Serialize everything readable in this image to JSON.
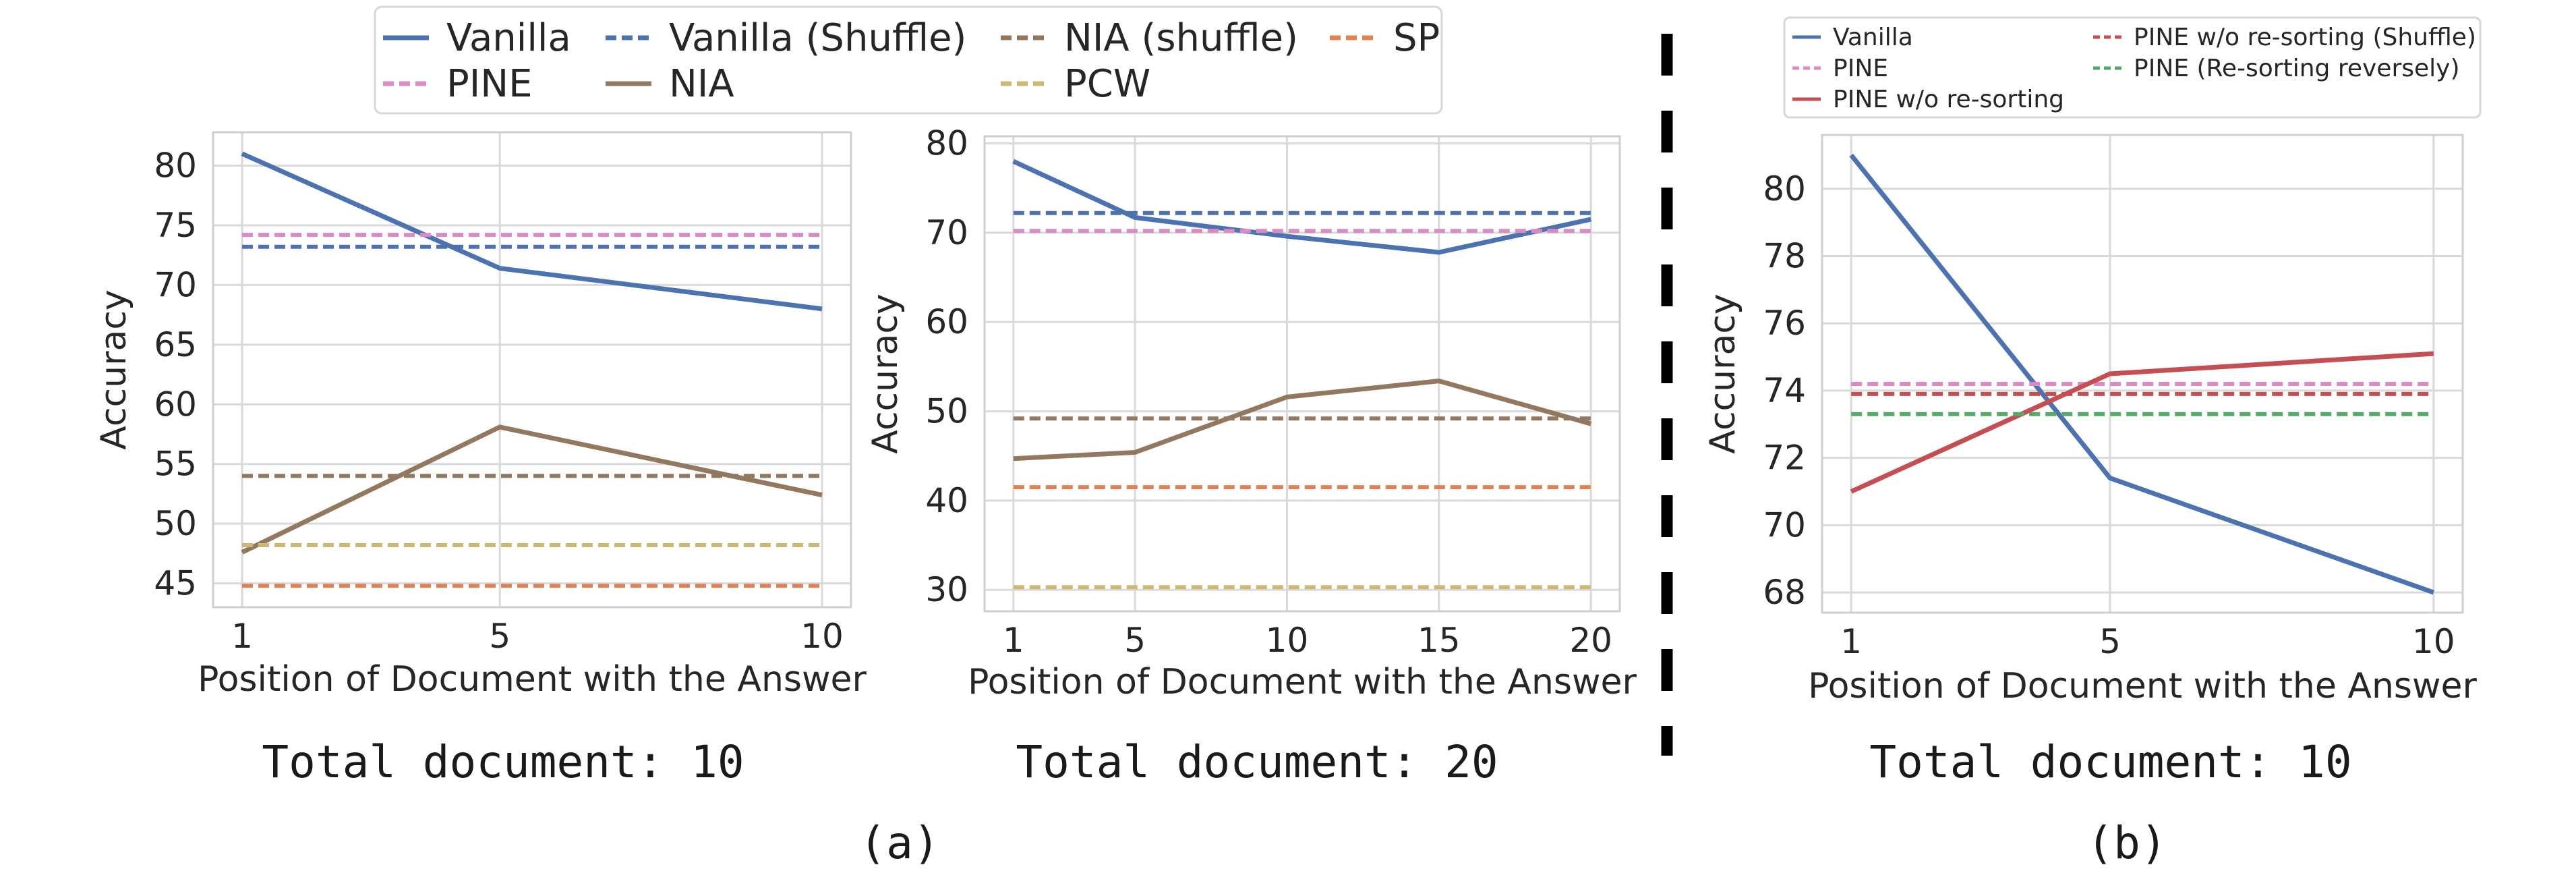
{
  "legend_a": [
    {
      "label": "Vanilla",
      "color": "#4c72b0",
      "dash": false
    },
    {
      "label": "PINE",
      "color": "#da8bc3",
      "dash": true
    },
    {
      "label": "Vanilla (Shuffle)",
      "color": "#4c72b0",
      "dash": true
    },
    {
      "label": "NIA",
      "color": "#937860",
      "dash": false
    },
    {
      "label": "NIA (shuffle)",
      "color": "#937860",
      "dash": true
    },
    {
      "label": "PCW",
      "color": "#ccb974",
      "dash": true
    },
    {
      "label": "SP",
      "color": "#dd8452",
      "dash": true
    }
  ],
  "legend_b": [
    {
      "label": "Vanilla",
      "color": "#4c72b0",
      "dash": false
    },
    {
      "label": "PINE",
      "color": "#da8bc3",
      "dash": true
    },
    {
      "label": "PINE w/o re-sorting",
      "color": "#c44e52",
      "dash": false
    },
    {
      "label": "PINE w/o re-sorting (Shuffle)",
      "color": "#c44e52",
      "dash": true
    },
    {
      "label": "PINE (Re-sorting reversely)",
      "color": "#55a868",
      "dash": true
    }
  ],
  "captions": {
    "total1": "Total document: 10",
    "total2": "Total document: 20",
    "total3": "Total document: 10",
    "a": "(a)",
    "b": "(b)"
  },
  "chart_data": [
    {
      "type": "line",
      "xlabel": "Position of Document with the Answer",
      "ylabel": "Accuracy",
      "xticks": [
        1,
        5,
        10
      ],
      "yticks": [
        45,
        50,
        55,
        60,
        65,
        70,
        75,
        80
      ],
      "xlim": [
        0.55,
        10.45
      ],
      "ylim": [
        43,
        82.8
      ],
      "grid": true,
      "series": [
        {
          "name": "Vanilla",
          "color": "#4c72b0",
          "dash": false,
          "x": [
            1,
            5,
            10
          ],
          "y": [
            81.0,
            71.4,
            68.0
          ]
        },
        {
          "name": "PINE",
          "color": "#da8bc3",
          "dash": true,
          "x": [
            1,
            10
          ],
          "y": [
            74.2,
            74.2
          ]
        },
        {
          "name": "Vanilla (Shuffle)",
          "color": "#4c72b0",
          "dash": true,
          "x": [
            1,
            10
          ],
          "y": [
            73.2,
            73.2
          ]
        },
        {
          "name": "NIA",
          "color": "#937860",
          "dash": false,
          "x": [
            1,
            5,
            10
          ],
          "y": [
            47.6,
            58.1,
            52.4
          ]
        },
        {
          "name": "NIA (shuffle)",
          "color": "#937860",
          "dash": true,
          "x": [
            1,
            10
          ],
          "y": [
            54.0,
            54.0
          ]
        },
        {
          "name": "PCW",
          "color": "#ccb974",
          "dash": true,
          "x": [
            1,
            10
          ],
          "y": [
            48.2,
            48.2
          ]
        },
        {
          "name": "SP",
          "color": "#dd8452",
          "dash": true,
          "x": [
            1,
            10
          ],
          "y": [
            44.8,
            44.8
          ]
        }
      ]
    },
    {
      "type": "line",
      "xlabel": "Position of Document with the Answer",
      "ylabel": "Accuracy",
      "xticks": [
        1,
        5,
        10,
        15,
        20
      ],
      "yticks": [
        30,
        40,
        50,
        60,
        70,
        80
      ],
      "xlim": [
        0.05,
        20.95
      ],
      "ylim": [
        27.6,
        80.8
      ],
      "grid": true,
      "series": [
        {
          "name": "Vanilla",
          "color": "#4c72b0",
          "dash": false,
          "x": [
            1,
            5,
            10,
            15,
            20
          ],
          "y": [
            78.0,
            71.7,
            69.6,
            67.8,
            71.5
          ]
        },
        {
          "name": "PINE",
          "color": "#da8bc3",
          "dash": true,
          "x": [
            1,
            20
          ],
          "y": [
            70.2,
            70.2
          ]
        },
        {
          "name": "Vanilla (Shuffle)",
          "color": "#4c72b0",
          "dash": true,
          "x": [
            1,
            20
          ],
          "y": [
            72.2,
            72.2
          ]
        },
        {
          "name": "NIA",
          "color": "#937860",
          "dash": false,
          "x": [
            1,
            5,
            10,
            15,
            20
          ],
          "y": [
            44.7,
            45.4,
            51.6,
            53.4,
            48.6
          ]
        },
        {
          "name": "NIA (shuffle)",
          "color": "#937860",
          "dash": true,
          "x": [
            1,
            20
          ],
          "y": [
            49.2,
            49.2
          ]
        },
        {
          "name": "PCW",
          "color": "#ccb974",
          "dash": true,
          "x": [
            1,
            20
          ],
          "y": [
            30.3,
            30.3
          ]
        },
        {
          "name": "SP",
          "color": "#dd8452",
          "dash": true,
          "x": [
            1,
            20
          ],
          "y": [
            41.5,
            41.5
          ]
        }
      ]
    },
    {
      "type": "line",
      "xlabel": "Position of Document with the Answer",
      "ylabel": "Accuracy",
      "xticks": [
        1,
        5,
        10
      ],
      "yticks": [
        68,
        70,
        72,
        74,
        76,
        78,
        80
      ],
      "xlim": [
        0.55,
        10.45
      ],
      "ylim": [
        67.4,
        81.6
      ],
      "grid": true,
      "series": [
        {
          "name": "Vanilla",
          "color": "#4c72b0",
          "dash": false,
          "x": [
            1,
            5,
            10
          ],
          "y": [
            81.0,
            71.4,
            68.0
          ]
        },
        {
          "name": "PINE",
          "color": "#da8bc3",
          "dash": true,
          "x": [
            1,
            10
          ],
          "y": [
            74.2,
            74.2
          ]
        },
        {
          "name": "PINE w/o re-sorting",
          "color": "#c44e52",
          "dash": false,
          "x": [
            1,
            5,
            10
          ],
          "y": [
            71.0,
            74.5,
            75.1
          ]
        },
        {
          "name": "PINE w/o re-sorting (Shuffle)",
          "color": "#c44e52",
          "dash": true,
          "x": [
            1,
            10
          ],
          "y": [
            73.9,
            73.9
          ]
        },
        {
          "name": "PINE (Re-sorting reversely)",
          "color": "#55a868",
          "dash": true,
          "x": [
            1,
            10
          ],
          "y": [
            73.3,
            73.3
          ]
        }
      ]
    }
  ]
}
